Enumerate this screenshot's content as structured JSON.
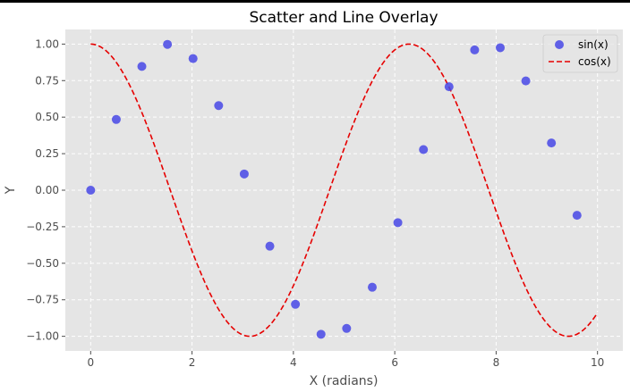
{
  "chart_data": {
    "type": "scatter",
    "title": "Scatter and Line Overlay",
    "xlabel": "X (radians)",
    "ylabel": "Y",
    "xlim": [
      -0.5,
      10.5
    ],
    "ylim": [
      -1.1,
      1.1
    ],
    "x_ticks": [
      0,
      2,
      4,
      6,
      8,
      10
    ],
    "x_tick_labels": [
      "0",
      "2",
      "4",
      "6",
      "8",
      "10"
    ],
    "y_ticks": [
      1.0,
      0.75,
      0.5,
      0.25,
      0.0,
      -0.25,
      -0.5,
      -0.75,
      -1.0
    ],
    "y_tick_labels": [
      "1.00",
      "0.75",
      "0.50",
      "0.25",
      "0.00",
      "−0.25",
      "−0.50",
      "−0.75",
      "−1.00"
    ],
    "grid": true,
    "legend_position": "top-right",
    "series": [
      {
        "name": "sin(x)",
        "kind": "scatter",
        "color": "#4848e6",
        "points": [
          {
            "x": 0.0,
            "y": 0.0
          },
          {
            "x": 0.505,
            "y": 0.484
          },
          {
            "x": 1.01,
            "y": 0.847
          },
          {
            "x": 1.515,
            "y": 0.998
          },
          {
            "x": 2.02,
            "y": 0.901
          },
          {
            "x": 2.525,
            "y": 0.579
          },
          {
            "x": 3.03,
            "y": 0.111
          },
          {
            "x": 3.535,
            "y": -0.383
          },
          {
            "x": 4.04,
            "y": -0.781
          },
          {
            "x": 4.545,
            "y": -0.986
          },
          {
            "x": 5.05,
            "y": -0.946
          },
          {
            "x": 5.556,
            "y": -0.664
          },
          {
            "x": 6.061,
            "y": -0.222
          },
          {
            "x": 6.566,
            "y": 0.278
          },
          {
            "x": 7.071,
            "y": 0.708
          },
          {
            "x": 7.576,
            "y": 0.96
          },
          {
            "x": 8.081,
            "y": 0.975
          },
          {
            "x": 8.586,
            "y": 0.748
          },
          {
            "x": 9.091,
            "y": 0.323
          },
          {
            "x": 9.596,
            "y": -0.172
          }
        ]
      },
      {
        "name": "cos(x)",
        "kind": "line",
        "style": "dashed",
        "color": "#e60000",
        "x_range": [
          0,
          10
        ],
        "function": "cos"
      }
    ]
  }
}
